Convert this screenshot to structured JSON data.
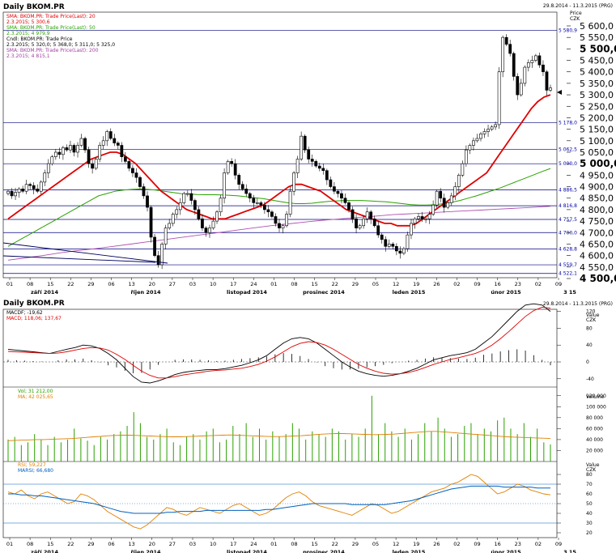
{
  "title": "Daily BKOM.PR",
  "date_range": "29.8.2014 - 11.3.2015 (PRG)",
  "sub_title": "Daily BKOM.PR",
  "sub_date_range": "29.8.2014 - 11.3.2015 (PRG)",
  "colors": {
    "sma20": "#e00000",
    "sma50": "#2aa000",
    "sma200": "#b050b0",
    "level": "#000080",
    "macd": "#000000",
    "signal": "#e00000",
    "volume": "#2aa000",
    "vma": "#e08000",
    "rsi": "#e08000",
    "marsi": "#0060c0"
  },
  "legend_main": [
    {
      "name": "SMA: BKOM.PR: Trade Price(Last): 20",
      "val": "2.3.2015; 5 300,6",
      "color": "#e00000"
    },
    {
      "name": "SMA: BKOM.PR: Trade Price(Last): 50",
      "val": "2.3.2015; 4 979,9",
      "color": "#2aa000"
    },
    {
      "name": "Cndl: BKOM.PR: Trade Price",
      "val": "2.3.2015; 5 320,0; 5 368,0; 5 311,0; 5 325,0",
      "color": "#000000"
    },
    {
      "name": "SMA: BKOM.PR: Trade Price(Last): 200",
      "val": "2.3.2015; 4 815,1",
      "color": "#a040a0"
    }
  ],
  "legend_macd": [
    {
      "text": "MACDF; -19,62",
      "color": "#000000"
    },
    {
      "text": "MACD; 118,06; 137,67",
      "color": "#e00000"
    }
  ],
  "legend_vol": [
    {
      "text": "Vol; 31 212,00",
      "color": "#2aa000"
    },
    {
      "text": "MA; 42 025,65",
      "color": "#e08000"
    }
  ],
  "legend_rsi": [
    {
      "text": "RSI; 59,227",
      "color": "#e08000"
    },
    {
      "text": "MARSI; 66,680",
      "color": "#0060c0"
    }
  ],
  "axis_unit_price": "Price",
  "axis_currency": "CZK",
  "axis_unit_value": "Value",
  "axis_unit_volume": "Volume",
  "price_ticks": [
    "5 600,0",
    "5 550,0",
    "5 500,0",
    "5 450,0",
    "5 400,0",
    "5 350,0",
    "5 300,0",
    "5 250,0",
    "5 200,0",
    "5 150,0",
    "5 100,0",
    "5 050,0",
    "5 000,0",
    "4 950,0",
    "4 900,0",
    "4 850,0",
    "4 800,0",
    "4 750,0",
    "4 700,0",
    "4 650,0",
    "4 600,0",
    "4 550,0",
    "4 500,0"
  ],
  "level_labels": [
    "5 580,9",
    "5 178,0",
    "5 062,5",
    "5 000,0",
    "4 886,5",
    "4 816,8",
    "4 757,5",
    "4 700,0",
    "4 628,8",
    "4 559,7",
    "4 522,1"
  ],
  "macd_ticks": [
    "120",
    "80",
    "40",
    "0",
    "-40"
  ],
  "vol_ticks": [
    "120 000",
    "100 000",
    "80 000",
    "60 000",
    "40 000",
    "20 000"
  ],
  "rsi_ticks": [
    "80",
    "70",
    "60",
    "50",
    "40",
    "30",
    "20"
  ],
  "day_ticks": [
    "01",
    "08",
    "15",
    "22",
    "29",
    "06",
    "13",
    "20",
    "27",
    "03",
    "10",
    "17",
    "24",
    "01",
    "08",
    "15",
    "22",
    "29",
    "05",
    "12",
    "19",
    "26",
    "02",
    "09",
    "16",
    "23",
    "02",
    "09"
  ],
  "month_labels": [
    "září 2014",
    "říjen 2014",
    "listopad 2014",
    "prosinec 2014",
    "leden 2015",
    "únor 2015",
    "3 15"
  ],
  "chart_data": [
    {
      "type": "candlestick",
      "title": "Daily BKOM.PR",
      "ylabel": "Price CZK",
      "ylim": [
        4500,
        5650
      ],
      "levels": [
        5580.9,
        5178.0,
        5062.5,
        5000.0,
        4886.5,
        4816.8,
        4757.5,
        4700.0,
        4628.8,
        4559.7,
        4522.1
      ],
      "x_labels": [
        "01",
        "08",
        "15",
        "22",
        "29",
        "06",
        "13",
        "20",
        "27",
        "03",
        "10",
        "17",
        "24",
        "01",
        "08",
        "15",
        "22",
        "29",
        "05",
        "12",
        "19",
        "26",
        "02",
        "09",
        "16",
        "23",
        "02",
        "09"
      ],
      "close": [
        4880,
        4860,
        4875,
        4890,
        4880,
        4910,
        4905,
        4890,
        4880,
        4920,
        4960,
        5000,
        5030,
        5050,
        5040,
        5070,
        5060,
        5080,
        5050,
        5080,
        5110,
        5060,
        5000,
        4980,
        5020,
        5080,
        5100,
        5140,
        5110,
        5090,
        5080,
        5030,
        5010,
        4980,
        4960,
        4940,
        4900,
        4860,
        4810,
        4680,
        4600,
        4560,
        4650,
        4720,
        4740,
        4780,
        4800,
        4830,
        4870,
        4870,
        4840,
        4800,
        4760,
        4720,
        4700,
        4720,
        4750,
        4790,
        4850,
        4960,
        5010,
        5000,
        4950,
        4910,
        4890,
        4870,
        4850,
        4830,
        4830,
        4820,
        4800,
        4790,
        4770,
        4740,
        4720,
        4730,
        4780,
        4880,
        4960,
        5020,
        5120,
        5060,
        5020,
        5010,
        4990,
        4980,
        4970,
        4930,
        4900,
        4880,
        4870,
        4850,
        4830,
        4800,
        4760,
        4720,
        4730,
        4760,
        4790,
        4760,
        4730,
        4690,
        4670,
        4640,
        4650,
        4640,
        4620,
        4610,
        4630,
        4690,
        4740,
        4760,
        4770,
        4760,
        4760,
        4780,
        4820,
        4880,
        4850,
        4810,
        4830,
        4860,
        4900,
        4950,
        5000,
        5060,
        5080,
        5100,
        5110,
        5130,
        5140,
        5150,
        5160,
        5170,
        5400,
        5550,
        5520,
        5480,
        5380,
        5300,
        5350,
        5420,
        5440,
        5450,
        5470,
        5430,
        5400,
        5320,
        5330
      ],
      "sma20": [
        4760,
        4780,
        4800,
        4820,
        4840,
        4860,
        4880,
        4900,
        4920,
        4940,
        4960,
        4980,
        5000,
        5020,
        5030,
        5040,
        5050,
        5050,
        5040,
        5020,
        5000,
        4970,
        4940,
        4910,
        4880,
        4860,
        4840,
        4820,
        4800,
        4790,
        4780,
        4770,
        4760,
        4760,
        4760,
        4770,
        4780,
        4790,
        4800,
        4810,
        4820,
        4840,
        4860,
        4880,
        4900,
        4910,
        4910,
        4900,
        4890,
        4880,
        4860,
        4840,
        4820,
        4800,
        4790,
        4780,
        4770,
        4760,
        4750,
        4740,
        4740,
        4730,
        4730,
        4730,
        4740,
        4760,
        4780,
        4800,
        4820,
        4840,
        4860,
        4880,
        4900,
        4920,
        4940,
        4960,
        5000,
        5040,
        5080,
        5120,
        5160,
        5200,
        5240,
        5270,
        5290,
        5300
      ],
      "sma50": [
        4640,
        4660,
        4680,
        4700,
        4720,
        4740,
        4760,
        4780,
        4800,
        4820,
        4840,
        4860,
        4870,
        4880,
        4885,
        4888,
        4890,
        4888,
        4885,
        4880,
        4875,
        4870,
        4868,
        4866,
        4865,
        4865,
        4864,
        4862,
        4860,
        4856,
        4852,
        4848,
        4842,
        4836,
        4830,
        4826,
        4826,
        4828,
        4832,
        4836,
        4838,
        4840,
        4840,
        4840,
        4838,
        4836,
        4834,
        4830,
        4826,
        4822,
        4820,
        4820,
        4822,
        4826,
        4832,
        4840,
        4850,
        4860,
        4872,
        4884,
        4896,
        4910,
        4924,
        4938,
        4952,
        4966,
        4979
      ],
      "sma200": [
        4580,
        4590,
        4600,
        4612,
        4622,
        4630,
        4640,
        4650,
        4660,
        4670,
        4680,
        4690,
        4700,
        4710,
        4720,
        4730,
        4738,
        4746,
        4754,
        4760,
        4766,
        4772,
        4778,
        4782,
        4786,
        4790,
        4794,
        4798,
        4802,
        4806,
        4810,
        4815
      ]
    },
    {
      "type": "line",
      "title": "MACD",
      "ylabel": "Value CZK",
      "ylim": [
        -70,
        150
      ],
      "series": [
        {
          "name": "MACDF",
          "values": [
            30,
            28,
            26,
            24,
            22,
            20,
            25,
            30,
            34,
            40,
            38,
            32,
            20,
            5,
            -15,
            -35,
            -48,
            -50,
            -45,
            -38,
            -30,
            -25,
            -22,
            -20,
            -18,
            -18,
            -16,
            -12,
            -8,
            -2,
            5,
            15,
            30,
            45,
            55,
            58,
            55,
            45,
            30,
            15,
            0,
            -12,
            -22,
            -28,
            -32,
            -34,
            -32,
            -28,
            -22,
            -15,
            -5,
            5,
            10,
            15,
            18,
            22,
            30,
            45,
            60,
            80,
            100,
            120,
            135,
            138,
            135,
            120
          ]
        },
        {
          "name": "MACD",
          "values": [
            25,
            24,
            23,
            22,
            21,
            20,
            21,
            24,
            28,
            32,
            34,
            33,
            28,
            18,
            6,
            -8,
            -22,
            -32,
            -38,
            -38,
            -35,
            -31,
            -28,
            -25,
            -22,
            -20,
            -19,
            -17,
            -15,
            -11,
            -6,
            2,
            12,
            24,
            36,
            44,
            48,
            46,
            40,
            30,
            18,
            6,
            -6,
            -15,
            -22,
            -27,
            -29,
            -28,
            -25,
            -20,
            -13,
            -6,
            0,
            6,
            10,
            15,
            20,
            28,
            40,
            55,
            72,
            90,
            108,
            122,
            130,
            128
          ]
        },
        {
          "name": "Histogram",
          "values": [
            5,
            4,
            3,
            2,
            1,
            0,
            4,
            6,
            6,
            8,
            4,
            -1,
            -8,
            -13,
            -21,
            -27,
            -26,
            -18,
            -7,
            0,
            5,
            6,
            6,
            5,
            4,
            2,
            3,
            5,
            7,
            9,
            11,
            13,
            18,
            21,
            19,
            14,
            7,
            -1,
            -10,
            -15,
            -18,
            -18,
            -16,
            -13,
            -10,
            -7,
            -3,
            0,
            3,
            5,
            8,
            11,
            10,
            9,
            8,
            7,
            10,
            17,
            20,
            25,
            28,
            30,
            27,
            16,
            5,
            -8
          ]
        }
      ]
    },
    {
      "type": "bar",
      "title": "Volume",
      "ylabel": "Volume",
      "ylim": [
        0,
        130000
      ],
      "series": [
        {
          "name": "Vol",
          "values": [
            40000,
            45000,
            30000,
            35000,
            50000,
            40000,
            30000,
            45000,
            35000,
            40000,
            60000,
            42000,
            38000,
            30000,
            45000,
            40000,
            50000,
            55000,
            65000,
            90000,
            70000,
            45000,
            40000,
            50000,
            60000,
            35000,
            30000,
            45000,
            50000,
            40000,
            55000,
            60000,
            35000,
            40000,
            65000,
            50000,
            70000,
            45000,
            60000,
            40000,
            55000,
            45000,
            50000,
            70000,
            60000,
            40000,
            55000,
            50000,
            45000,
            60000,
            55000,
            40000,
            50000,
            45000,
            60000,
            120000,
            50000,
            70000,
            55000,
            45000,
            60000,
            40000,
            50000,
            70000,
            55000,
            80000,
            60000,
            45000,
            50000,
            65000,
            70000,
            50000,
            60000,
            55000,
            75000,
            80000,
            60000,
            50000,
            70000,
            45000,
            60000,
            35000,
            31212
          ]
        },
        {
          "name": "MA",
          "values": [
            38000,
            38500,
            39000,
            39500,
            40000,
            40000,
            40500,
            41000,
            41500,
            42000,
            43000,
            44000,
            45000,
            46000,
            47000,
            47500,
            48000,
            48000,
            47500,
            47000,
            46500,
            46000,
            45500,
            45000,
            45000,
            45500,
            46000,
            46500,
            47000,
            47500,
            48000,
            48500,
            48000,
            47500,
            47000,
            46500,
            46000,
            45500,
            45500,
            46000,
            46500,
            47000,
            48000,
            49000,
            50000,
            50500,
            51000,
            51000,
            50500,
            50000,
            49500,
            49000,
            49000,
            49500,
            50000,
            51000,
            52000,
            53000,
            54000,
            55000,
            55000,
            54000,
            53000,
            52000,
            51000,
            50000,
            49000,
            48000,
            47000,
            46000,
            45000,
            44500,
            44000,
            43500,
            43000,
            42500,
            42025
          ]
        }
      ]
    },
    {
      "type": "line",
      "title": "RSI",
      "ylabel": "Value CZK",
      "ylim": [
        15,
        90
      ],
      "series": [
        {
          "name": "RSI",
          "values": [
            62,
            60,
            64,
            58,
            55,
            60,
            62,
            58,
            54,
            50,
            52,
            60,
            58,
            54,
            48,
            42,
            38,
            34,
            30,
            26,
            24,
            28,
            34,
            40,
            46,
            44,
            40,
            38,
            42,
            46,
            44,
            42,
            40,
            44,
            48,
            50,
            46,
            42,
            38,
            40,
            44,
            50,
            56,
            60,
            62,
            58,
            52,
            48,
            46,
            44,
            42,
            40,
            38,
            42,
            46,
            50,
            48,
            44,
            40,
            42,
            46,
            50,
            54,
            58,
            62,
            64,
            66,
            70,
            72,
            76,
            80,
            78,
            72,
            66,
            60,
            62,
            66,
            70,
            68,
            64,
            62,
            60,
            59
          ]
        },
        {
          "name": "MARSI",
          "values": [
            60,
            60,
            59,
            59,
            58,
            58,
            57,
            56,
            55,
            54,
            53,
            52,
            51,
            50,
            48,
            46,
            44,
            42,
            41,
            40,
            40,
            40,
            40,
            40,
            41,
            41,
            42,
            42,
            42,
            42,
            43,
            43,
            43,
            43,
            43,
            43,
            43,
            43,
            43,
            44,
            44,
            45,
            46,
            47,
            48,
            49,
            50,
            50,
            50,
            50,
            50,
            50,
            49,
            49,
            49,
            49,
            49,
            49,
            50,
            51,
            52,
            53,
            55,
            57,
            59,
            61,
            63,
            65,
            66,
            67,
            68,
            68,
            68,
            68,
            68,
            67,
            67,
            67,
            67,
            67,
            66,
            66,
            66
          ]
        }
      ]
    }
  ]
}
